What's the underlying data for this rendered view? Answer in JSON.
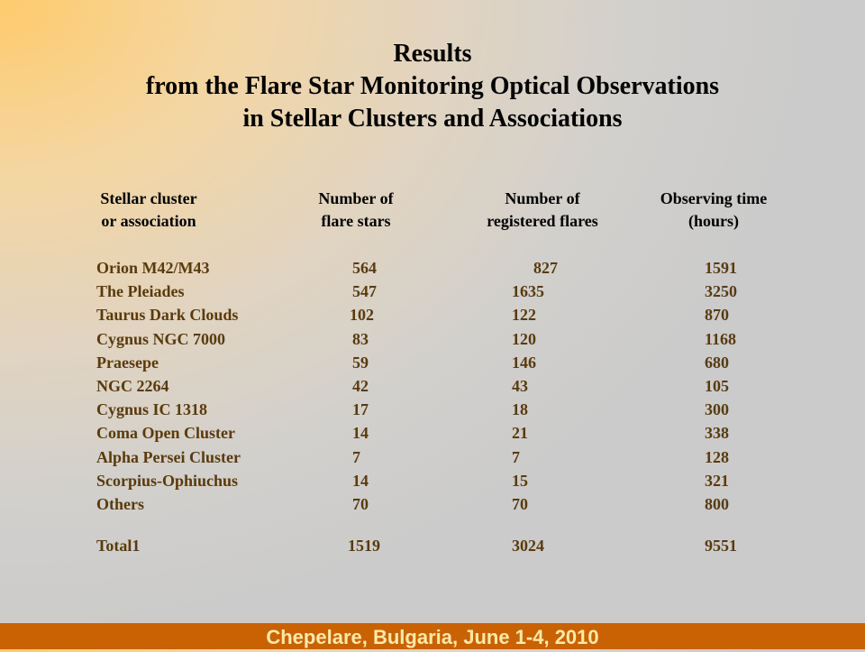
{
  "title": {
    "line1": "Results",
    "line2": "from the Flare Star Monitoring Optical Observations",
    "line3": "in Stellar Clusters and Associations"
  },
  "table": {
    "headers": [
      {
        "line1": "Stellar cluster",
        "line2": "or association"
      },
      {
        "line1": "Number of",
        "line2": "flare stars"
      },
      {
        "line1": "Number of",
        "line2": "registered flares"
      },
      {
        "line1": "Observing time",
        "line2": "(hours)"
      }
    ],
    "rows": [
      [
        "Orion M42/M43",
        "564",
        "827",
        "1591"
      ],
      [
        "The Pleiades",
        "547",
        "1635",
        "3250"
      ],
      [
        "Taurus Dark Clouds",
        "102",
        "122",
        "870"
      ],
      [
        "Cygnus NGC 7000",
        "83",
        "120",
        "1168"
      ],
      [
        "Praesepe",
        "59",
        "146",
        "680"
      ],
      [
        "NGC 2264",
        "42",
        "43",
        "105"
      ],
      [
        "Cygnus IC 1318",
        "17",
        "18",
        "300"
      ],
      [
        "Coma Open Cluster",
        "14",
        "21",
        "338"
      ],
      [
        "Alpha Persei Cluster",
        "7",
        "7",
        "128"
      ],
      [
        "Scorpius-Ophiuchus",
        "14",
        "15",
        "321"
      ],
      [
        "Others",
        "70",
        "70",
        "800"
      ]
    ],
    "total": [
      "Total1",
      "1519",
      "3024",
      "9551"
    ]
  },
  "footer": {
    "text": "Chepelare, Bulgaria, June 1-4, 2010"
  },
  "colors": {
    "footer_bg": "#c96203",
    "footer_text": "#fee9a8",
    "table_text": "#5a3a0c"
  }
}
